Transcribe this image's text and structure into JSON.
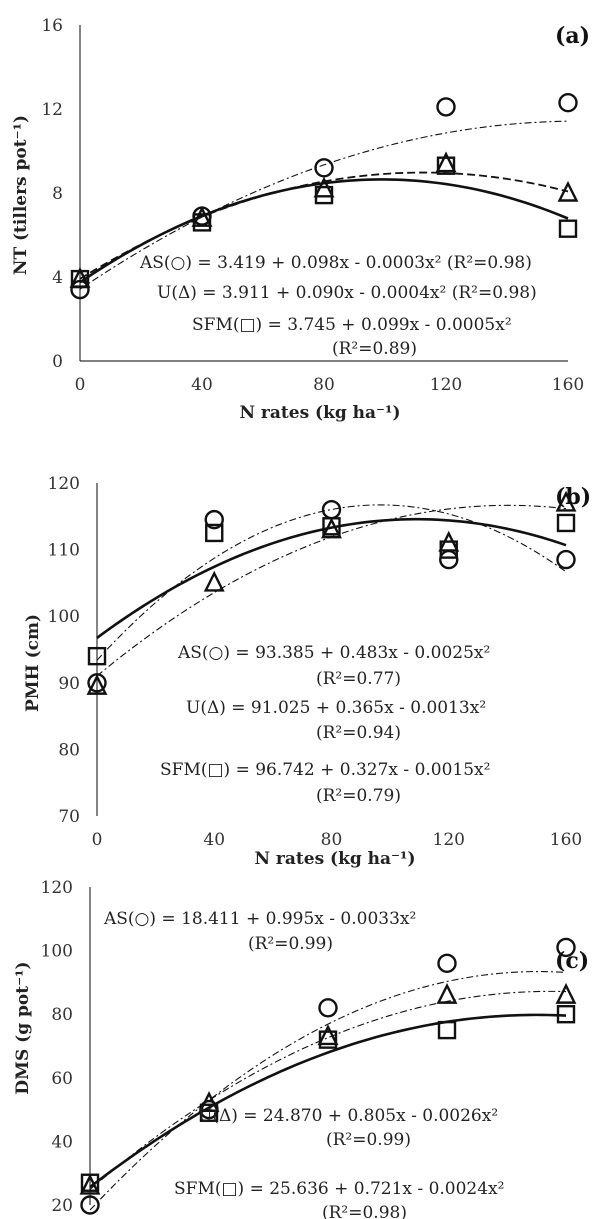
{
  "chart_data": [
    {
      "type": "scatter",
      "panel": "(a)",
      "xlabel": "N rates (kg ha⁻¹)",
      "ylabel": "NT (tillers pot⁻¹)",
      "xticks": [
        0,
        40,
        80,
        120,
        160
      ],
      "yticks": [
        0,
        4,
        8,
        12,
        16
      ],
      "xlim": [
        0,
        160
      ],
      "ylim": [
        0,
        16
      ],
      "grid": false,
      "x": [
        0,
        40,
        80,
        120,
        160
      ],
      "series": [
        {
          "marker": "circle",
          "values": [
            3.4,
            6.9,
            9.2,
            12.1,
            12.3
          ],
          "fit": [
            3.419,
            0.098,
            -0.0003
          ],
          "line": "dash-dot"
        },
        {
          "marker": "triangle",
          "values": [
            3.9,
            6.8,
            8.2,
            9.4,
            8.0
          ],
          "fit": [
            3.911,
            0.09,
            -0.0004
          ],
          "line": "dashed"
        },
        {
          "marker": "square",
          "values": [
            3.9,
            6.6,
            7.9,
            9.3,
            6.3
          ],
          "fit": [
            3.745,
            0.099,
            -0.0005
          ],
          "line": "solid"
        }
      ],
      "annotations": [
        {
          "text": "AS(○) = 3.419 + 0.098x - 0.0003x² (R²=0.98)"
        },
        {
          "text": "U(Δ) = 3.911 + 0.090x - 0.0004x² (R²=0.98)"
        },
        {
          "text": "SFM(□) = 3.745 + 0.099x - 0.0005x²"
        },
        {
          "text": "(R²=0.89)"
        }
      ]
    },
    {
      "type": "scatter",
      "panel": "(b)",
      "xlabel": "N rates (kg ha⁻¹)",
      "ylabel": "PMH (cm)",
      "xticks": [
        0,
        40,
        80,
        120,
        160
      ],
      "yticks": [
        70,
        80,
        90,
        100,
        110,
        120
      ],
      "xlim": [
        0,
        160
      ],
      "ylim": [
        70,
        120
      ],
      "grid": false,
      "x": [
        0,
        40,
        80,
        120,
        160
      ],
      "series": [
        {
          "marker": "circle",
          "values": [
            90,
            114.5,
            116,
            108.5,
            108.5
          ],
          "fit": [
            93.385,
            0.483,
            -0.0025
          ],
          "line": "dash-dot"
        },
        {
          "marker": "triangle",
          "values": [
            89.5,
            105,
            113,
            111,
            117
          ],
          "fit": [
            91.025,
            0.365,
            -0.0013
          ],
          "line": "dash-dot"
        },
        {
          "marker": "square",
          "values": [
            94,
            112.5,
            113.5,
            110,
            114
          ],
          "fit": [
            96.742,
            0.327,
            -0.0015
          ],
          "line": "solid"
        }
      ],
      "annotations": [
        {
          "text": "AS(○) = 93.385 + 0.483x - 0.0025x²"
        },
        {
          "text": "(R²=0.77)"
        },
        {
          "text": "U(Δ) = 91.025 + 0.365x - 0.0013x²"
        },
        {
          "text": "(R²=0.94)"
        },
        {
          "text": "SFM(□) = 96.742 + 0.327x - 0.0015x²"
        },
        {
          "text": "(R²=0.79)"
        }
      ]
    },
    {
      "type": "scatter",
      "panel": "(c)",
      "xlabel": "",
      "ylabel": "DMS (g pot⁻¹)",
      "xticks": [],
      "yticks": [
        20,
        40,
        60,
        80,
        100,
        120
      ],
      "xlim": [
        0,
        160
      ],
      "ylim": [
        20,
        120
      ],
      "grid": false,
      "x": [
        0,
        40,
        80,
        120,
        160
      ],
      "series": [
        {
          "marker": "circle",
          "values": [
            20,
            50,
            82,
            96,
            101
          ],
          "fit": [
            18.411,
            0.995,
            -0.0033
          ],
          "line": "dash-dot"
        },
        {
          "marker": "triangle",
          "values": [
            26,
            52,
            73,
            86,
            86
          ],
          "fit": [
            24.87,
            0.805,
            -0.0026
          ],
          "line": "dash-dot"
        },
        {
          "marker": "square",
          "values": [
            27,
            49,
            72,
            75,
            80
          ],
          "fit": [
            25.636,
            0.721,
            -0.0024
          ],
          "line": "solid"
        }
      ],
      "annotations": [
        {
          "text": "AS(○) = 18.411 + 0.995x - 0.0033x²"
        },
        {
          "text": "(R²=0.99)"
        },
        {
          "text": "U(Δ) = 24.870 + 0.805x - 0.0026x²"
        },
        {
          "text": "(R²=0.99)"
        },
        {
          "text": "SFM(□) = 25.636 + 0.721x - 0.0024x²"
        },
        {
          "text": "(R²=0.98)"
        }
      ]
    }
  ]
}
